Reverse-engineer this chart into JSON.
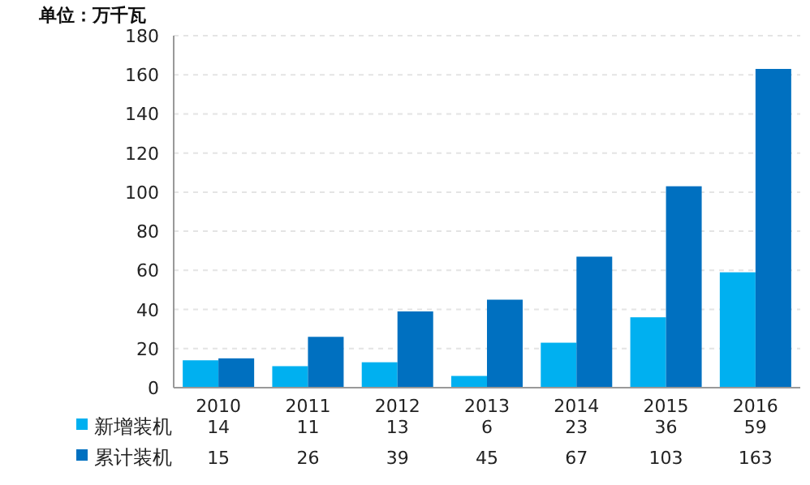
{
  "chart_data": {
    "type": "bar",
    "ylabel": "单位：万千瓦",
    "categories": [
      "2010",
      "2011",
      "2012",
      "2013",
      "2014",
      "2015",
      "2016"
    ],
    "series": [
      {
        "name": "新增装机",
        "color": "#00b0f0",
        "values": [
          14,
          11,
          13,
          6,
          23,
          36,
          59
        ]
      },
      {
        "name": "累计装机",
        "color": "#0070c0",
        "values": [
          15,
          26,
          39,
          45,
          67,
          103,
          163
        ]
      }
    ],
    "ylim": [
      0,
      180
    ],
    "yticks": [
      0,
      20,
      40,
      60,
      80,
      100,
      120,
      140,
      160,
      180
    ],
    "grid": "y",
    "data_labels": true,
    "legend": "bottom left"
  }
}
